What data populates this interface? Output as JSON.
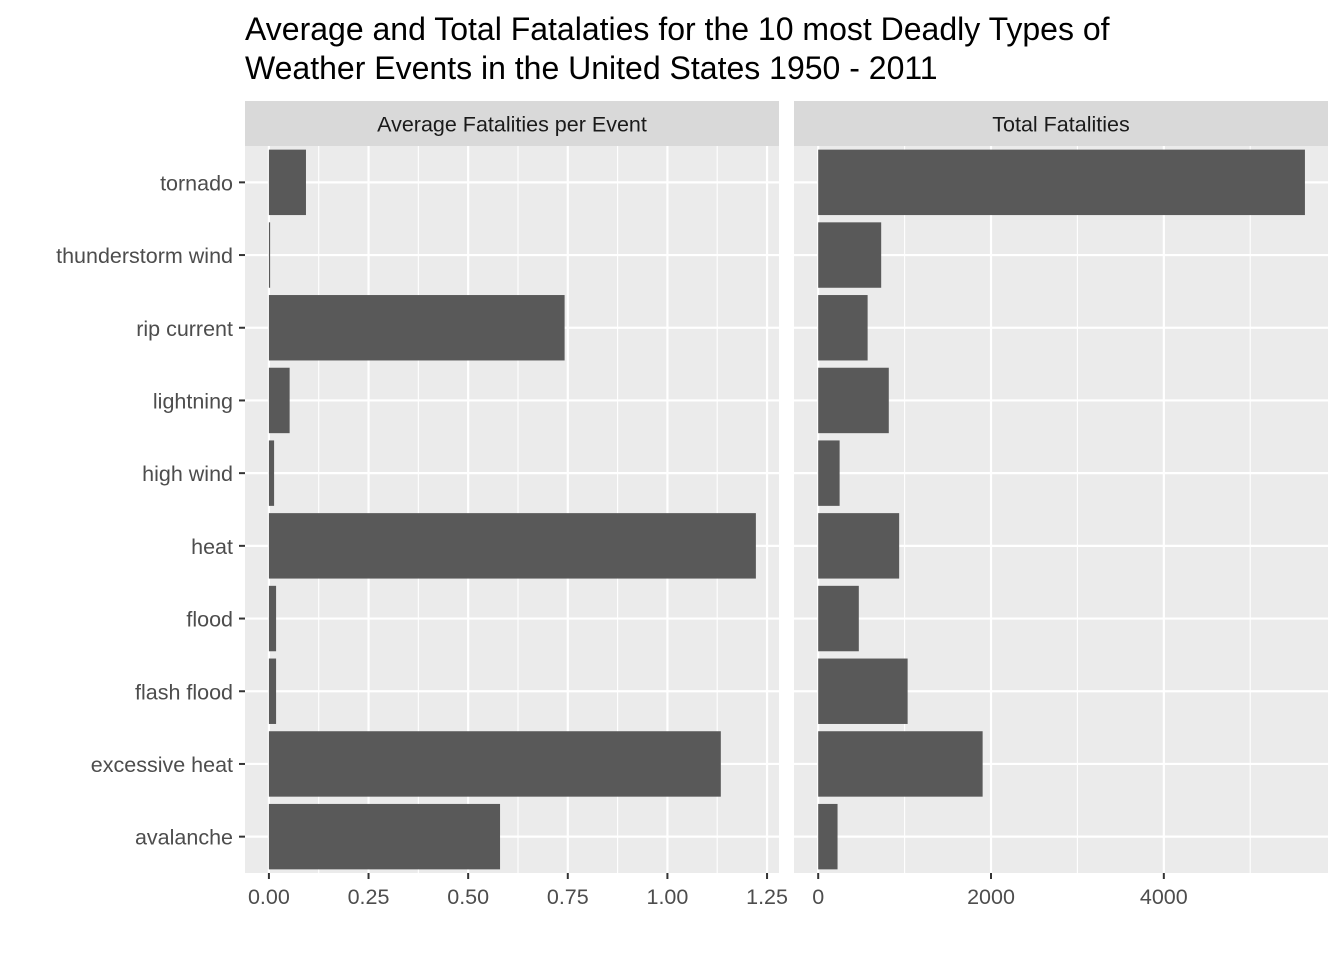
{
  "chart_data": {
    "type": "bar",
    "orientation": "horizontal",
    "title_lines": [
      "Average and Total Fatalaties for the 10 most Deadly Types of",
      "Weather Events in the United States 1950 - 2011"
    ],
    "categories": [
      "tornado",
      "thunderstorm wind",
      "rip current",
      "lightning",
      "high wind",
      "heat",
      "flood",
      "flash flood",
      "excessive heat",
      "avalanche"
    ],
    "panels": [
      {
        "strip_label": "Average Fatalities per Event",
        "xlim": [
          -0.06,
          1.28
        ],
        "ticks": [
          0,
          0.25,
          0.5,
          0.75,
          1,
          1.25
        ],
        "tick_labels": [
          "0.00",
          "0.25",
          "0.50",
          "0.75",
          "1.00",
          "1.25"
        ],
        "values": [
          0.093,
          0.003,
          0.742,
          0.052,
          0.013,
          1.222,
          0.018,
          0.018,
          1.134,
          0.58
        ]
      },
      {
        "strip_label": "Total Fatalities",
        "xlim": [
          -280,
          5900
        ],
        "ticks": [
          0,
          2000,
          4000
        ],
        "tick_labels": [
          "0",
          "2000",
          "4000"
        ],
        "values": [
          5633,
          729,
          572,
          817,
          248,
          937,
          470,
          1035,
          1903,
          224
        ]
      }
    ],
    "bar_color": "#595959",
    "panel_background": "#ebebeb",
    "strip_background": "#d9d9d9",
    "grid_color": "#ffffff"
  }
}
